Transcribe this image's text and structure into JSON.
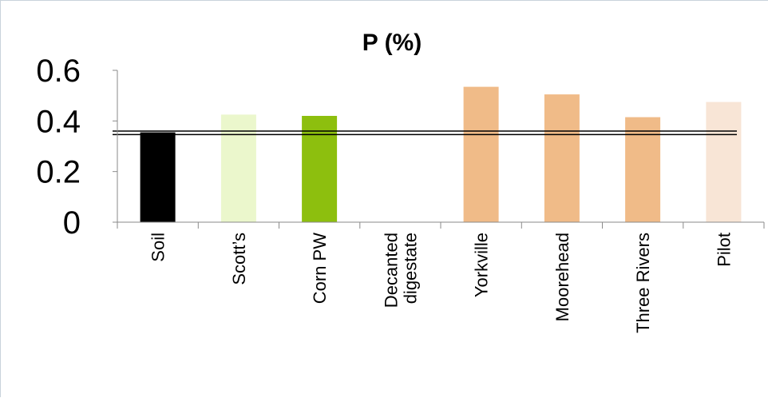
{
  "chart_data": {
    "type": "bar",
    "title": "P (%)",
    "xlabel": "",
    "ylabel": "",
    "ylim": [
      0,
      0.6
    ],
    "yticks": [
      "0",
      "0.2",
      "0.4",
      "0.6"
    ],
    "categories": [
      [
        "Soil"
      ],
      [
        "Scott’s"
      ],
      [
        "Corn PW"
      ],
      [
        "Decanted",
        "digestate"
      ],
      [
        "Yorkville"
      ],
      [
        "Moorehead"
      ],
      [
        "Three Rivers"
      ],
      [
        "Pilot"
      ]
    ],
    "values": [
      0.355,
      0.425,
      0.42,
      0,
      0.535,
      0.505,
      0.415,
      0.475
    ],
    "colors": [
      "#000000",
      "#ebf7cc",
      "#8dbf0e",
      "#f0bb88",
      "#f0bb88",
      "#f0bb88",
      "#f0bb88",
      "#f8e5d6"
    ],
    "reference_lines": [
      0.346,
      0.36
    ],
    "grid": false,
    "legend": "none"
  }
}
